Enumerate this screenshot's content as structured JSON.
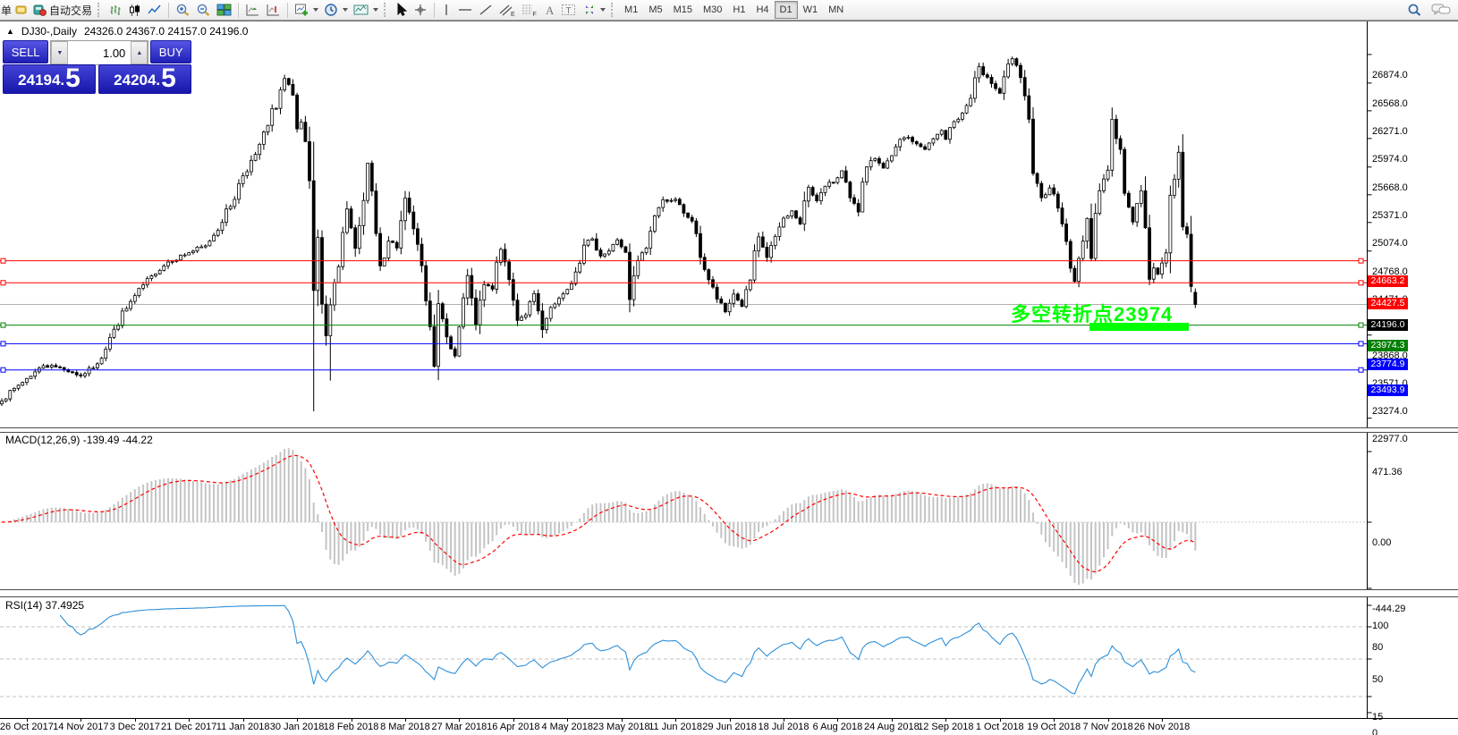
{
  "toolbar": {
    "order_label": "单",
    "autotrade_label": "自动交易",
    "timeframes": [
      {
        "label": "M1",
        "active": false
      },
      {
        "label": "M5",
        "active": false
      },
      {
        "label": "M15",
        "active": false
      },
      {
        "label": "M30",
        "active": false
      },
      {
        "label": "H1",
        "active": false
      },
      {
        "label": "H4",
        "active": false
      },
      {
        "label": "D1",
        "active": true
      },
      {
        "label": "W1",
        "active": false
      },
      {
        "label": "MN",
        "active": false
      }
    ]
  },
  "chart_header": {
    "title_symbol": "DJ30-,Daily",
    "title_ohlc": "24326.0 24367.0 24157.0 24196.0"
  },
  "trade_panel": {
    "sell_label": "SELL",
    "buy_label": "BUY",
    "volume": "1.00",
    "sell_main": "24194.",
    "sell_big": "5",
    "buy_main": "24204.",
    "buy_big": "5"
  },
  "annotation": {
    "text": "多空转折点23974",
    "color": "#00FF00"
  },
  "colors": {
    "line_red": "#FF0000",
    "line_green": "#008000",
    "line_blue": "#0000FF",
    "current_label": "#000000",
    "annotation_green": "#00FF00",
    "rsi_blue": "#2E8FD8",
    "macd_signal": "#FF0000",
    "macd_hist": "#C4C4C4",
    "panel_blue": "#2A2ACF"
  },
  "chart_data": [
    {
      "type": "candlestick",
      "symbol": "DJ30-",
      "timeframe": "Daily",
      "last_ohlc": {
        "open": 24326.0,
        "high": 24367.0,
        "low": 24157.0,
        "close": 24196.0
      },
      "current_price": 24196.0,
      "price_range": [
        22878,
        27228
      ],
      "y_ticks": [
        26874.0,
        26568.0,
        26271.0,
        25974.0,
        25668.0,
        25371.0,
        25074.0,
        24768.0,
        24471.0,
        24174.0,
        23868.0,
        23571.0,
        23274.0,
        22977.0
      ],
      "num_candles": 288,
      "close_waypoints": [
        [
          0,
          23160
        ],
        [
          4,
          23330
        ],
        [
          6,
          23400
        ],
        [
          10,
          23540
        ],
        [
          14,
          23520
        ],
        [
          19,
          23430
        ],
        [
          23,
          23560
        ],
        [
          27,
          23930
        ],
        [
          32,
          24290
        ],
        [
          36,
          24504
        ],
        [
          40,
          24651
        ],
        [
          45,
          24750
        ],
        [
          49,
          24824
        ],
        [
          53,
          25075
        ],
        [
          58,
          25575
        ],
        [
          61,
          25803
        ],
        [
          64,
          26115
        ],
        [
          68,
          26617
        ],
        [
          70,
          26439
        ],
        [
          71,
          26077
        ],
        [
          72,
          26149
        ],
        [
          74,
          25521
        ],
        [
          75,
          24346
        ],
        [
          76,
          24913
        ],
        [
          78,
          23860
        ],
        [
          79,
          24191
        ],
        [
          81,
          24601
        ],
        [
          83,
          25219
        ],
        [
          85,
          24797
        ],
        [
          87,
          25310
        ],
        [
          88,
          25709
        ],
        [
          89,
          25410
        ],
        [
          91,
          24608
        ],
        [
          93,
          24874
        ],
        [
          95,
          24801
        ],
        [
          97,
          25336
        ],
        [
          99,
          25007
        ],
        [
          101,
          24611
        ],
        [
          103,
          23958
        ],
        [
          104,
          23533
        ],
        [
          105,
          24203
        ],
        [
          107,
          23848
        ],
        [
          109,
          23644
        ],
        [
          111,
          24265
        ],
        [
          112,
          24505
        ],
        [
          113,
          24264
        ],
        [
          114,
          23979
        ],
        [
          116,
          24408
        ],
        [
          118,
          24360
        ],
        [
          120,
          24786
        ],
        [
          122,
          24463
        ],
        [
          124,
          24024
        ],
        [
          126,
          24084
        ],
        [
          128,
          24311
        ],
        [
          130,
          23925
        ],
        [
          132,
          24163
        ],
        [
          134,
          24263
        ],
        [
          136,
          24357
        ],
        [
          138,
          24543
        ],
        [
          140,
          24831
        ],
        [
          142,
          24899
        ],
        [
          144,
          24715
        ],
        [
          146,
          24768
        ],
        [
          148,
          24887
        ],
        [
          150,
          24754
        ],
        [
          151,
          24248
        ],
        [
          153,
          24668
        ],
        [
          155,
          24800
        ],
        [
          157,
          25146
        ],
        [
          159,
          25317
        ],
        [
          162,
          25322
        ],
        [
          164,
          25175
        ],
        [
          166,
          25090
        ],
        [
          168,
          24700
        ],
        [
          170,
          24461
        ],
        [
          172,
          24253
        ],
        [
          174,
          24117
        ],
        [
          176,
          24307
        ],
        [
          178,
          24174
        ],
        [
          180,
          24457
        ],
        [
          182,
          24920
        ],
        [
          184,
          24700
        ],
        [
          186,
          24924
        ],
        [
          188,
          25120
        ],
        [
          190,
          25199
        ],
        [
          192,
          25058
        ],
        [
          194,
          25451
        ],
        [
          196,
          25306
        ],
        [
          198,
          25462
        ],
        [
          200,
          25502
        ],
        [
          202,
          25628
        ],
        [
          204,
          25339
        ],
        [
          206,
          25187
        ],
        [
          208,
          25669
        ],
        [
          210,
          25758
        ],
        [
          212,
          25657
        ],
        [
          214,
          25790
        ],
        [
          216,
          25964
        ],
        [
          218,
          25987
        ],
        [
          220,
          25916
        ],
        [
          222,
          25857
        ],
        [
          224,
          25971
        ],
        [
          226,
          26060
        ],
        [
          227,
          25965
        ],
        [
          229,
          26155
        ],
        [
          231,
          26246
        ],
        [
          233,
          26405
        ],
        [
          235,
          26744
        ],
        [
          236,
          26657
        ],
        [
          238,
          26562
        ],
        [
          240,
          26458
        ],
        [
          242,
          26773
        ],
        [
          243,
          26828
        ],
        [
          245,
          26627
        ],
        [
          246,
          26431
        ],
        [
          247,
          26181
        ],
        [
          248,
          25599
        ],
        [
          250,
          25340
        ],
        [
          252,
          25444
        ],
        [
          253,
          25379
        ],
        [
          255,
          25058
        ],
        [
          257,
          24583
        ],
        [
          258,
          24443
        ],
        [
          259,
          24688
        ],
        [
          260,
          24874
        ],
        [
          261,
          25116
        ],
        [
          262,
          24689
        ],
        [
          263,
          25171
        ],
        [
          264,
          25414
        ],
        [
          266,
          25635
        ],
        [
          267,
          26180
        ],
        [
          269,
          25857
        ],
        [
          270,
          25387
        ],
        [
          272,
          25080
        ],
        [
          274,
          25413
        ],
        [
          275,
          25017
        ],
        [
          276,
          24466
        ],
        [
          277,
          24586
        ],
        [
          278,
          24520
        ],
        [
          279,
          24640
        ],
        [
          280,
          24748
        ],
        [
          281,
          25366
        ],
        [
          282,
          25538
        ],
        [
          283,
          25826
        ],
        [
          284,
          25027
        ],
        [
          285,
          24948
        ],
        [
          286,
          24389
        ],
        [
          287,
          24196
        ]
      ],
      "overrides": {
        "75": {
          "low": 23050
        },
        "79": {
          "low": 23380
        },
        "287": {
          "open": 24326,
          "high": 24367,
          "low": 24157,
          "close": 24196
        }
      },
      "hlines": [
        {
          "price": 24663.2,
          "color": "#FF0000"
        },
        {
          "price": 24427.5,
          "color": "#FF0000"
        },
        {
          "price": 23974.3,
          "color": "#008000"
        },
        {
          "price": 23774.9,
          "color": "#0000FF"
        },
        {
          "price": 23493.9,
          "color": "#0000FF"
        }
      ],
      "x_labels": [
        "26 Oct 2017",
        "14 Nov 2017",
        "3 Dec 2017",
        "21 Dec 2017",
        "11 Jan 2018",
        "30 Jan 2018",
        "18 Feb 2018",
        "8 Mar 2018",
        "27 Mar 2018",
        "16 Apr 2018",
        "4 May 2018",
        "23 May 2018",
        "11 Jun 2018",
        "29 Jun 2018",
        "18 Jul 2018",
        "6 Aug 2018",
        "24 Aug 2018",
        "12 Sep 2018",
        "1 Oct 2018",
        "19 Oct 2018",
        "7 Nov 2018",
        "26 Nov 2018"
      ]
    },
    {
      "type": "macd",
      "label": "MACD(12,26,9) -139.49 -44.22",
      "params": [
        12,
        26,
        9
      ],
      "values": [
        -139.49,
        -44.22
      ],
      "y_ticks": [
        471.36,
        0.0,
        -444.29
      ]
    },
    {
      "type": "rsi",
      "label": "RSI(14) 37.4925",
      "period": 14,
      "value": 37.4925,
      "y_ticks": [
        100,
        80,
        50,
        15,
        0
      ],
      "levels": [
        80,
        50,
        15
      ]
    }
  ]
}
